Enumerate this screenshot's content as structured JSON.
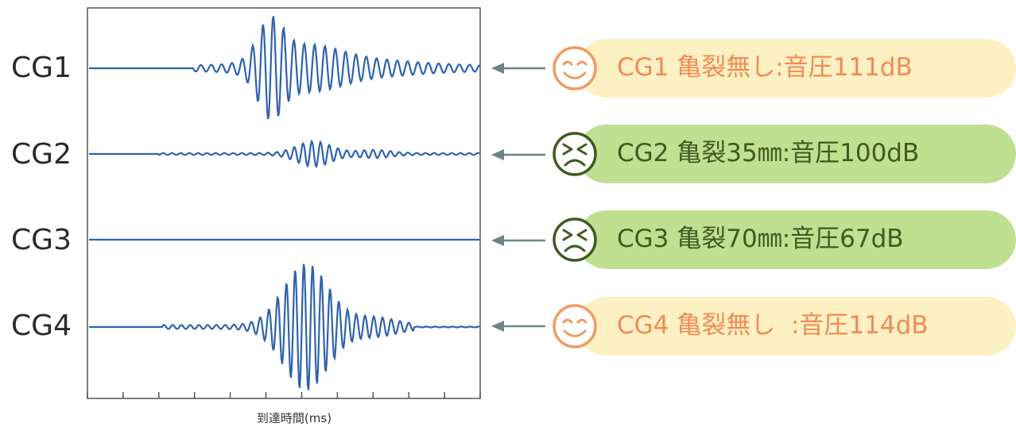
{
  "axis": {
    "title": "到達時間(ms)"
  },
  "rows": [
    {
      "label": "CG1",
      "caption": "CG1 亀裂無し:音圧111dB",
      "mood": "smile-icon",
      "pill_color": "#fdf0c2",
      "text_color": "#ef8b55",
      "face_color": "#f29a63"
    },
    {
      "label": "CG2",
      "caption": "CG2 亀裂35㎜:音圧100dB",
      "mood": "frown-icon",
      "pill_color": "#bfe091",
      "text_color": "#3f5a1e",
      "face_color": "#3f5a1e"
    },
    {
      "label": "CG3",
      "caption": "CG3 亀裂70㎜:音圧67dB",
      "mood": "frown-icon",
      "pill_color": "#bfe091",
      "text_color": "#3f5a1e",
      "face_color": "#3f5a1e"
    },
    {
      "label": "CG4",
      "caption": "CG4 亀裂無し  :音圧114dB",
      "mood": "smile-icon",
      "pill_color": "#fdf0c2",
      "text_color": "#ef8b55",
      "face_color": "#f29a63"
    }
  ],
  "colors": {
    "waveform": "#2e63ad",
    "frame": "#555555",
    "arrow": "#6b8486"
  }
}
